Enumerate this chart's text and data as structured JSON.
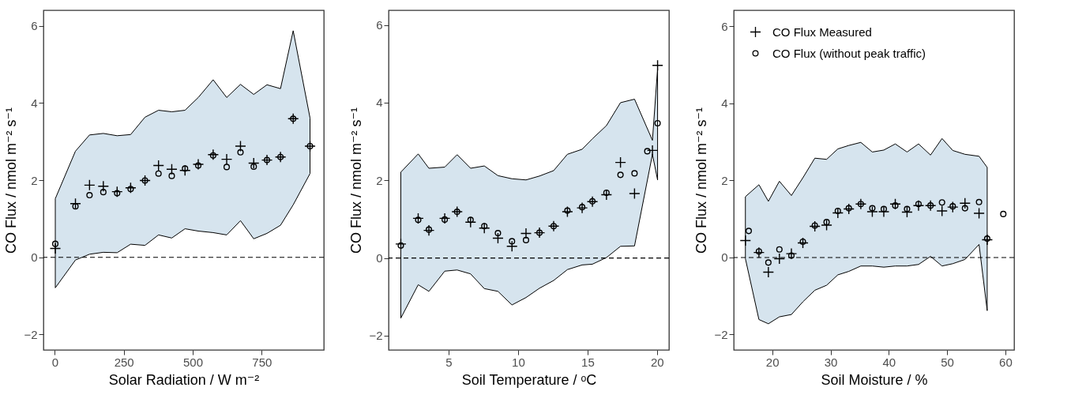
{
  "chart_data": [
    {
      "type": "scatter",
      "xlabel": "Solar Radiation  /  W m⁻²",
      "ylabel": "CO Flux  /  nmol m⁻² s⁻¹",
      "xlim": [
        -41,
        975
      ],
      "ylim": [
        -2.4,
        6.4
      ],
      "xticks": [
        0,
        250,
        500,
        750
      ],
      "yticks": [
        -2,
        0,
        2,
        4,
        6
      ],
      "grid": false,
      "legend": false,
      "ref_lines": [
        {
          "axis": "y",
          "value": 0,
          "line_style": "dashed",
          "color": "#000000"
        }
      ],
      "series": [
        {
          "marker": "cross",
          "color": "#000000",
          "x": [
            2,
            75,
            126,
            176,
            226,
            275,
            327,
            376,
            424,
            472,
            520,
            574,
            623,
            673,
            721,
            769,
            818,
            864,
            925
          ],
          "values": [
            0.23,
            1.39,
            1.87,
            1.84,
            1.7,
            1.8,
            1.99,
            2.38,
            2.28,
            2.25,
            2.41,
            2.66,
            2.54,
            2.88,
            2.44,
            2.52,
            2.6,
            3.59,
            2.88
          ],
          "upper": [
            1.52,
            2.75,
            3.17,
            3.21,
            3.15,
            3.18,
            3.63,
            3.81,
            3.77,
            3.81,
            4.14,
            4.6,
            4.14,
            4.48,
            4.22,
            4.47,
            4.37,
            5.87,
            3.61
          ],
          "lower": [
            -0.79,
            -0.07,
            0.08,
            0.13,
            0.12,
            0.34,
            0.31,
            0.58,
            0.5,
            0.74,
            0.68,
            0.64,
            0.58,
            0.95,
            0.48,
            0.62,
            0.83,
            1.36,
            2.17
          ]
        },
        {
          "marker": "circle",
          "color": "#000000",
          "x": [
            2,
            75,
            126,
            176,
            226,
            275,
            327,
            376,
            424,
            472,
            520,
            574,
            623,
            673,
            721,
            769,
            818,
            864,
            925
          ],
          "values": [
            0.35,
            1.32,
            1.61,
            1.69,
            1.66,
            1.77,
            1.99,
            2.17,
            2.11,
            2.3,
            2.38,
            2.64,
            2.34,
            2.72,
            2.35,
            2.52,
            2.6,
            3.59,
            2.88
          ]
        }
      ]
    },
    {
      "type": "scatter",
      "xlabel": "Soil Temperature /  ᵒC",
      "ylabel": "CO Flux  /  nmol m⁻² s⁻¹",
      "xlim": [
        0.68,
        20.86
      ],
      "ylim": [
        -2.37,
        6.38
      ],
      "xticks": [
        5,
        10,
        15,
        20
      ],
      "yticks": [
        -2,
        0,
        2,
        4,
        6
      ],
      "grid": false,
      "legend": false,
      "ref_lines": [
        {
          "axis": "y",
          "value": 0,
          "line_style": "dashed",
          "color": "#000000"
        }
      ],
      "series": [
        {
          "marker": "cross",
          "color": "#000000",
          "x": [
            1.56,
            2.81,
            3.58,
            4.72,
            5.61,
            6.58,
            7.57,
            8.55,
            9.56,
            10.57,
            11.54,
            12.56,
            13.55,
            14.61,
            15.35,
            16.36,
            17.37,
            18.38,
            19.67,
            20.04
          ],
          "values": [
            0.36,
            1.02,
            0.71,
            1.02,
            1.19,
            0.92,
            0.77,
            0.51,
            0.3,
            0.63,
            0.65,
            0.82,
            1.19,
            1.29,
            1.45,
            1.63,
            2.46,
            1.66,
            2.77,
            4.96
          ],
          "upper": [
            2.21,
            2.68,
            2.31,
            2.34,
            2.66,
            2.31,
            2.37,
            2.12,
            2.04,
            2.01,
            2.11,
            2.25,
            2.67,
            2.8,
            3.07,
            3.41,
            4.0,
            4.09,
            3.03,
            4.88
          ],
          "lower": [
            -1.55,
            -0.69,
            -0.86,
            -0.34,
            -0.31,
            -0.41,
            -0.79,
            -0.86,
            -1.21,
            -1.02,
            -0.78,
            -0.58,
            -0.3,
            -0.18,
            -0.16,
            0.01,
            0.3,
            0.31,
            2.67,
            2.01
          ]
        },
        {
          "marker": "circle",
          "color": "#000000",
          "x": [
            1.56,
            2.81,
            3.58,
            4.72,
            5.61,
            6.58,
            7.57,
            8.55,
            9.56,
            10.57,
            11.54,
            12.56,
            13.55,
            14.61,
            15.35,
            16.36,
            17.37,
            18.38,
            19.3,
            20.04
          ],
          "values": [
            0.32,
            0.98,
            0.73,
            0.99,
            1.19,
            0.98,
            0.82,
            0.64,
            0.43,
            0.46,
            0.65,
            0.82,
            1.22,
            1.31,
            1.46,
            1.68,
            2.14,
            2.18,
            2.75,
            3.47
          ]
        }
      ]
    },
    {
      "type": "scatter",
      "xlabel": "Soil Moisture / %",
      "ylabel": "CO Flux  /  nmol m⁻² s⁻¹",
      "xlim": [
        13.4,
        61.5
      ],
      "ylim": [
        -2.4,
        6.42
      ],
      "xticks": [
        20,
        30,
        40,
        50,
        60
      ],
      "yticks": [
        -2,
        0,
        2,
        4,
        6
      ],
      "grid": false,
      "legend": "top left",
      "ref_lines": [
        {
          "axis": "y",
          "value": 0,
          "line_style": "dashed",
          "color": "#000000"
        }
      ],
      "series": [
        {
          "name": "CO Flux Measured",
          "marker": "cross",
          "color": "#000000",
          "x": [
            15.4,
            17.72,
            19.34,
            21.23,
            23.29,
            25.26,
            27.31,
            29.33,
            31.26,
            33.14,
            35.2,
            37.17,
            39.14,
            41.11,
            43.13,
            45.1,
            47.16,
            49.13,
            50.97,
            53.07,
            55.48,
            56.88
          ],
          "values": [
            0.44,
            0.13,
            -0.38,
            -0.03,
            0.1,
            0.38,
            0.81,
            0.84,
            1.16,
            1.26,
            1.39,
            1.19,
            1.19,
            1.39,
            1.18,
            1.35,
            1.35,
            1.21,
            1.31,
            1.41,
            1.15,
            0.46
          ],
          "upper": [
            1.58,
            1.89,
            1.46,
            1.98,
            1.61,
            2.07,
            2.58,
            2.55,
            2.82,
            2.91,
            2.99,
            2.74,
            2.79,
            2.95,
            2.74,
            2.95,
            2.66,
            3.09,
            2.78,
            2.68,
            2.63,
            2.34
          ],
          "lower": [
            -0.03,
            -1.61,
            -1.72,
            -1.54,
            -1.48,
            -1.15,
            -0.85,
            -0.72,
            -0.45,
            -0.36,
            -0.22,
            -0.22,
            -0.25,
            -0.22,
            -0.22,
            -0.18,
            0.03,
            -0.22,
            -0.16,
            -0.05,
            0.34,
            -1.38
          ]
        },
        {
          "name": "CO Flux (without peak traffic)",
          "marker": "circle",
          "color": "#000000",
          "x": [
            15.97,
            17.72,
            19.34,
            21.23,
            23.29,
            25.26,
            27.31,
            29.33,
            31.26,
            33.14,
            35.2,
            37.17,
            39.14,
            41.11,
            43.13,
            45.1,
            47.16,
            49.13,
            50.97,
            53.07,
            55.48,
            56.88,
            59.64
          ],
          "values": [
            0.69,
            0.16,
            -0.13,
            0.21,
            0.05,
            0.41,
            0.83,
            0.92,
            1.21,
            1.28,
            1.39,
            1.28,
            1.26,
            1.35,
            1.26,
            1.39,
            1.35,
            1.43,
            1.33,
            1.28,
            1.44,
            0.49,
            1.13
          ]
        }
      ]
    }
  ]
}
